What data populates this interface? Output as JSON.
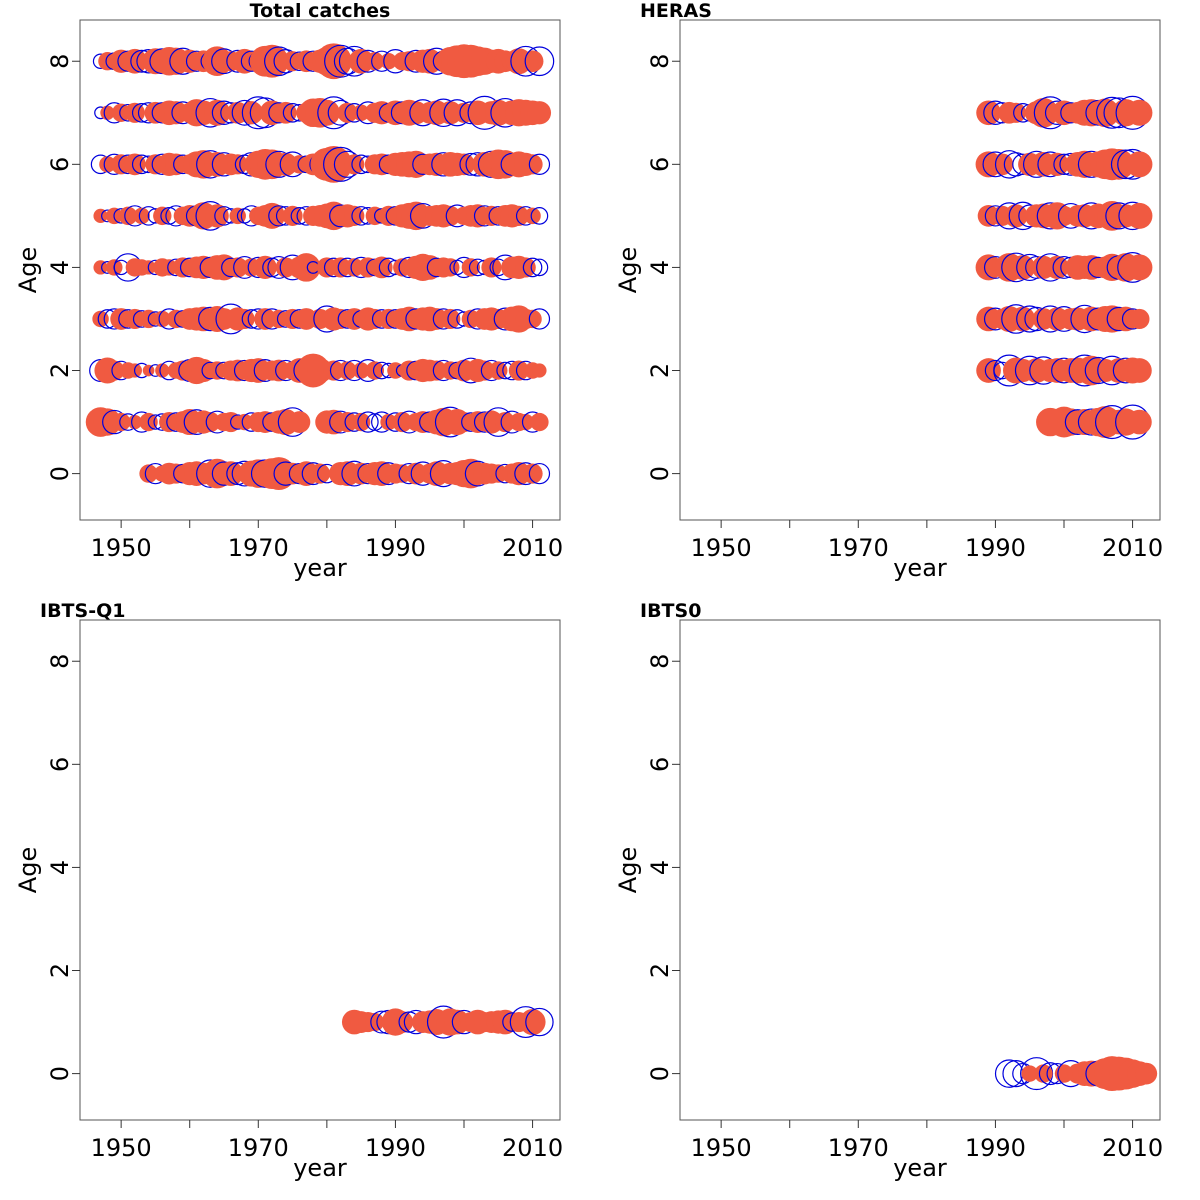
{
  "chart_data": [
    {
      "type": "scatter",
      "subtype": "bubble",
      "title": "Total catches",
      "xlabel": "year",
      "ylabel": "Age",
      "xlim": [
        1944,
        2014
      ],
      "ylim": [
        -0.9,
        8.8
      ],
      "xticks": [
        1950,
        1960,
        1970,
        1980,
        1990,
        2000,
        2010
      ],
      "xtick_labels": [
        "1950",
        "",
        "1970",
        "",
        "1990",
        "",
        "2010"
      ],
      "yticks": [
        0,
        2,
        4,
        6,
        8
      ],
      "ytick_labels": [
        "0",
        "2",
        "4",
        "6",
        "8"
      ],
      "encoding": "bubble size = residual magnitude; filled red = negative, open blue = positive (alternating)",
      "year_start": 1947,
      "year_end": 2011,
      "ages": [
        {
          "age": 8,
          "first_year": 1947,
          "residuals": [
            0.3,
            -0.5,
            0.4,
            -0.8,
            0.6,
            -0.9,
            0.7,
            0.8,
            -1.0,
            0.9,
            -1.2,
            -1.1,
            1.0,
            -0.8,
            0.6,
            -0.7,
            0.5,
            -1.3,
            0.9,
            -0.6,
            0.7,
            -0.9,
            0.6,
            0.5,
            -1.4,
            -1.6,
            1.2,
            0.8,
            -0.6,
            0.5,
            -0.7,
            0.6,
            -0.8,
            -1.2,
            -1.9,
            1.5,
            1.0,
            1.3,
            -0.9,
            0.7,
            -0.5,
            0.6,
            -0.4,
            0.8,
            -0.5,
            -0.6,
            0.7,
            -0.8,
            -0.9,
            1.0,
            0.6,
            -1.2,
            -1.5,
            -1.7,
            -1.6,
            -1.3,
            -1.1,
            -0.8,
            -0.9,
            -0.7,
            -0.6,
            -1.0,
            1.3,
            -0.7,
            1.2
          ]
        },
        {
          "age": 7,
          "first_year": 1947,
          "residuals": [
            0.2,
            -0.3,
            0.6,
            -0.5,
            0.4,
            -0.6,
            0.5,
            0.6,
            -0.7,
            0.6,
            -0.9,
            -0.8,
            0.7,
            -0.6,
            -1.1,
            -0.9,
            1.2,
            -1.0,
            0.8,
            0.6,
            -0.7,
            0.9,
            -0.8,
            1.5,
            1.3,
            -0.9,
            0.6,
            -0.7,
            0.5,
            0.4,
            -0.6,
            -1.2,
            -1.3,
            -1.0,
            1.5,
            0.9,
            -0.6,
            0.5,
            -0.4,
            0.7,
            -0.6,
            -0.8,
            0.5,
            -0.9,
            0.7,
            -1.0,
            -0.8,
            1.0,
            -0.7,
            -0.9,
            1.1,
            -0.8,
            1.0,
            -0.6,
            0.7,
            -0.9,
            1.6,
            -0.8,
            -1.0,
            1.2,
            -0.9,
            -1.1,
            -1.0,
            -0.9,
            -0.8
          ]
        },
        {
          "age": 6,
          "first_year": 1947,
          "residuals": [
            0.5,
            -0.4,
            0.6,
            -0.6,
            0.5,
            -0.7,
            0.5,
            0.4,
            -0.6,
            0.6,
            -0.8,
            -0.7,
            0.5,
            -0.6,
            -1.0,
            -1.2,
            1.1,
            -0.9,
            0.8,
            -0.7,
            -0.6,
            0.5,
            0.8,
            -1.1,
            -1.4,
            -1.3,
            1.0,
            -0.8,
            0.9,
            -0.5,
            0.4,
            -0.7,
            0.6,
            -1.6,
            -2.0,
            1.7,
            1.0,
            -0.6,
            0.5,
            0.4,
            -0.6,
            -0.7,
            0.5,
            -0.8,
            -0.9,
            -1.0,
            -1.1,
            0.6,
            -0.7,
            -0.8,
            0.8,
            -0.9,
            -0.8,
            -0.7,
            0.7,
            0.8,
            -0.9,
            1.0,
            -1.3,
            -1.2,
            0.7,
            -1.0,
            -0.8,
            -0.6,
            0.6
          ]
        },
        {
          "age": 5,
          "first_year": 1947,
          "residuals": [
            -0.3,
            0.2,
            -0.4,
            0.3,
            -0.5,
            0.6,
            -0.4,
            0.5,
            0.3,
            -0.5,
            0.4,
            0.6,
            -0.5,
            -0.7,
            0.6,
            -1.1,
            1.2,
            -0.8,
            0.5,
            0.3,
            -0.4,
            0.3,
            0.6,
            -0.5,
            -0.7,
            -1.0,
            0.6,
            0.5,
            -0.6,
            0.4,
            0.5,
            -0.6,
            -0.7,
            -0.9,
            -1.2,
            0.7,
            -0.8,
            -0.6,
            0.5,
            0.4,
            -0.5,
            0.3,
            -0.6,
            0.5,
            -0.8,
            -1.0,
            -1.2,
            0.9,
            -0.6,
            -0.7,
            -0.8,
            -0.6,
            0.7,
            -0.5,
            -0.7,
            -0.8,
            0.6,
            -0.6,
            0.5,
            -0.7,
            -0.8,
            -0.6,
            0.5,
            -0.4,
            0.4
          ]
        },
        {
          "age": 4,
          "first_year": 1947,
          "residuals": [
            -0.3,
            0.2,
            -0.4,
            0.3,
            1.1,
            -0.5,
            -0.4,
            -0.3,
            0.3,
            -0.5,
            -0.4,
            0.4,
            -0.6,
            0.5,
            -0.7,
            -0.8,
            0.6,
            -0.9,
            -1.0,
            0.5,
            -0.6,
            0.7,
            -0.5,
            0.6,
            -0.8,
            0.5,
            0.7,
            -0.6,
            0.9,
            -0.7,
            -1.2,
            0.2,
            0.0,
            -0.6,
            0.5,
            -0.6,
            0.5,
            -0.5,
            0.6,
            -0.6,
            0.4,
            -0.7,
            0.5,
            0.3,
            -0.5,
            0.6,
            -0.8,
            -1.1,
            -0.9,
            0.5,
            -0.6,
            -0.5,
            0.3,
            0.6,
            -0.5,
            0.4,
            0.3,
            -0.6,
            0.4,
            0.9,
            -0.7,
            -0.8,
            -0.6,
            0.5,
            0.4
          ]
        },
        {
          "age": 3,
          "first_year": 1947,
          "residuals": [
            -0.4,
            0.5,
            0.6,
            -0.7,
            0.5,
            -0.6,
            0.4,
            -0.5,
            0.3,
            -0.4,
            0.6,
            -0.5,
            0.4,
            -0.7,
            -0.8,
            -0.9,
            0.8,
            -1.0,
            -0.7,
            1.3,
            -0.8,
            -0.6,
            0.5,
            0.6,
            -0.7,
            0.6,
            -0.5,
            0.4,
            -0.6,
            0.5,
            -0.7,
            0.0,
            -0.6,
            1.0,
            -0.8,
            -0.6,
            0.5,
            -0.7,
            0.4,
            -0.8,
            -0.6,
            0.5,
            -0.6,
            0.5,
            -0.7,
            -0.9,
            0.6,
            -0.8,
            -0.9,
            -0.7,
            0.6,
            -0.6,
            0.5,
            0.3,
            -0.5,
            0.6,
            -0.7,
            -0.8,
            -0.6,
            0.7,
            -0.9,
            -1.1,
            -0.6,
            -0.5,
            0.6
          ]
        },
        {
          "age": 2,
          "first_year": 1947,
          "residuals": [
            0.7,
            -1.0,
            -0.6,
            0.5,
            -0.4,
            -0.3,
            0.3,
            -0.2,
            0.2,
            -0.3,
            0.5,
            -0.4,
            -0.6,
            0.7,
            -1.1,
            -0.8,
            0.4,
            -0.5,
            0.4,
            -0.6,
            -0.7,
            0.6,
            -0.8,
            -0.9,
            0.7,
            -0.6,
            -0.7,
            0.6,
            -0.5,
            -0.9,
            0.9,
            -1.7,
            -0.9,
            -0.5,
            -0.6,
            0.6,
            -0.5,
            0.6,
            -0.4,
            0.7,
            -0.5,
            0.4,
            0.3,
            -0.4,
            0.2,
            -0.6,
            0.5,
            -0.8,
            -0.7,
            -0.6,
            0.6,
            -0.5,
            0.4,
            -0.7,
            0.9,
            -0.8,
            -0.6,
            0.6,
            -0.5,
            0.4,
            0.5,
            -0.6,
            0.5,
            -0.4,
            -0.3
          ]
        },
        {
          "age": 1,
          "first_year": 1947,
          "residuals": [
            -1.3,
            -1.1,
            0.8,
            -0.5,
            0.4,
            -0.3,
            0.6,
            -0.5,
            0.3,
            0.4,
            -0.6,
            0.5,
            -0.7,
            -1.0,
            0.9,
            -0.8,
            -0.6,
            0.7,
            -0.5,
            -0.6,
            0.3,
            -0.4,
            0.5,
            -0.6,
            -0.7,
            0.5,
            -0.8,
            -1.0,
            1.2,
            -0.7,
            0.0,
            0.0,
            0.0,
            -0.8,
            -0.9,
            0.7,
            -0.6,
            0.5,
            -0.5,
            0.6,
            0.4,
            0.6,
            -0.4,
            0.5,
            -0.6,
            0.7,
            -0.5,
            -0.7,
            0.6,
            -0.9,
            -1.2,
            1.3,
            -1.0,
            -0.6,
            0.5,
            -0.7,
            0.6,
            -0.8,
            1.2,
            -0.6,
            0.7,
            -0.5,
            -0.4,
            0.6,
            -0.5
          ]
        },
        {
          "age": 0,
          "first_year": 1954,
          "residuals": [
            -0.5,
            0.6,
            -0.4,
            -0.7,
            -0.6,
            0.5,
            -0.8,
            -0.9,
            -0.7,
            1.1,
            -1.3,
            0.8,
            -0.9,
            0.7,
            0.9,
            -1.0,
            -1.2,
            1.1,
            -1.4,
            -1.6,
            0.8,
            -0.7,
            0.6,
            -0.9,
            0.7,
            -0.6,
            0.5,
            0.0,
            -0.8,
            -0.9,
            0.9,
            -0.7,
            0.6,
            -0.8,
            -0.9,
            0.7,
            -0.6,
            -0.5,
            0.6,
            -0.7,
            0.8,
            -0.6,
            -0.9,
            1.0,
            -0.7,
            -0.8,
            -1.1,
            -1.3,
            0.9,
            -0.7,
            -0.6,
            -0.5,
            0.5,
            -0.6,
            -0.8,
            0.7,
            -0.6,
            0.6
          ]
        }
      ]
    },
    {
      "type": "scatter",
      "subtype": "bubble",
      "title": "HERAS",
      "xlabel": "year",
      "ylabel": "Age",
      "xlim": [
        1944,
        2014
      ],
      "ylim": [
        -0.9,
        8.8
      ],
      "xticks": [
        1950,
        1960,
        1970,
        1980,
        1990,
        2000,
        2010
      ],
      "xtick_labels": [
        "1950",
        "",
        "1970",
        "",
        "1990",
        "",
        "2010"
      ],
      "yticks": [
        0,
        2,
        4,
        6,
        8
      ],
      "ytick_labels": [
        "0",
        "2",
        "4",
        "6",
        "8"
      ],
      "ages": [
        {
          "age": 7,
          "first_year": 1989,
          "residuals": [
            -0.9,
            0.8,
            0.6,
            -0.7,
            -0.6,
            0.5,
            0.4,
            -0.8,
            -1.3,
            1.5,
            0.8,
            -0.9,
            0.6,
            -0.7,
            -1.0,
            -1.1,
            0.9,
            -1.2,
            1.4,
            1.3,
            -1.1,
            1.6,
            -1.0
          ]
        },
        {
          "age": 6,
          "first_year": 1989,
          "residuals": [
            -1.0,
            0.9,
            -0.7,
            1.1,
            0.8,
            0.6,
            -0.8,
            1.0,
            -0.9,
            0.9,
            -0.8,
            0.6,
            0.7,
            -0.9,
            -1.1,
            1.0,
            -1.0,
            -1.3,
            -1.5,
            -1.4,
            1.2,
            1.3,
            -1.0
          ]
        },
        {
          "age": 5,
          "first_year": 1989,
          "residuals": [
            -0.7,
            0.6,
            -0.6,
            1.0,
            -0.8,
            1.1,
            0.7,
            -0.8,
            -0.9,
            1.0,
            -1.1,
            -0.6,
            0.9,
            -0.7,
            -0.8,
            1.0,
            -0.9,
            -0.7,
            -1.3,
            1.0,
            -0.8,
            1.1,
            -1.0
          ]
        },
        {
          "age": 4,
          "first_year": 1989,
          "residuals": [
            -1.0,
            0.7,
            -0.6,
            -1.2,
            1.2,
            -0.9,
            1.0,
            0.7,
            -0.8,
            1.1,
            -0.8,
            0.7,
            0.6,
            -0.9,
            -0.8,
            -0.9,
            0.6,
            -0.7,
            -1.1,
            0.8,
            -1.2,
            1.3,
            -1.0
          ]
        },
        {
          "age": 3,
          "first_year": 1989,
          "residuals": [
            -0.9,
            0.7,
            -0.6,
            -1.0,
            1.2,
            -0.9,
            1.0,
            0.8,
            -0.7,
            1.0,
            -0.8,
            0.9,
            -0.7,
            -0.8,
            1.1,
            -0.9,
            0.7,
            -1.0,
            -1.1,
            0.8,
            -0.9,
            0.6,
            -0.6
          ]
        },
        {
          "age": 2,
          "first_year": 1989,
          "residuals": [
            -0.9,
            0.6,
            0.4,
            1.4,
            -1.0,
            -0.8,
            1.2,
            -0.9,
            1.1,
            -0.8,
            -0.9,
            0.9,
            -0.9,
            -1.0,
            1.4,
            -1.3,
            1.0,
            -0.8,
            1.2,
            -0.9,
            0.9,
            -1.0,
            -0.9
          ]
        },
        {
          "age": 1,
          "first_year": 1998,
          "residuals": [
            -1.2,
            0.3,
            -1.4,
            -1.1,
            0.9,
            -1.0,
            1.0,
            -1.2,
            -1.5,
            1.6,
            -0.9,
            -1.1,
            1.7,
            -0.9
          ]
        }
      ]
    },
    {
      "type": "scatter",
      "subtype": "bubble",
      "title": "IBTS-Q1",
      "xlabel": "year",
      "ylabel": "Age",
      "xlim": [
        1944,
        2014
      ],
      "ylim": [
        -0.9,
        8.8
      ],
      "xticks": [
        1950,
        1960,
        1970,
        1980,
        1990,
        2000,
        2010
      ],
      "xtick_labels": [
        "1950",
        "",
        "1970",
        "",
        "1990",
        "",
        "2010"
      ],
      "yticks": [
        0,
        2,
        4,
        6,
        8
      ],
      "ytick_labels": [
        "0",
        "2",
        "4",
        "6",
        "8"
      ],
      "ages": [
        {
          "age": 1,
          "first_year": 1984,
          "residuals": [
            -0.9,
            -0.7,
            -0.6,
            -0.5,
            0.7,
            0.8,
            -1.1,
            -0.7,
            0.6,
            0.8,
            -0.7,
            -0.8,
            -1.0,
            1.5,
            -1.1,
            -0.9,
            0.8,
            -0.6,
            -0.9,
            -0.6,
            -0.7,
            -0.8,
            -0.9,
            0.5,
            -0.6,
            1.4,
            -1.0,
            1.1
          ]
        }
      ]
    },
    {
      "type": "scatter",
      "subtype": "bubble",
      "title": "IBTS0",
      "xlabel": "year",
      "ylabel": "Age",
      "xlim": [
        1944,
        2014
      ],
      "ylim": [
        -0.9,
        8.8
      ],
      "xticks": [
        1950,
        1960,
        1970,
        1980,
        1990,
        2000,
        2010
      ],
      "xtick_labels": [
        "1950",
        "",
        "1970",
        "",
        "1990",
        "",
        "2010"
      ],
      "yticks": [
        0,
        2,
        4,
        6,
        8
      ],
      "ytick_labels": [
        "0",
        "2",
        "4",
        "6",
        "8"
      ],
      "ages": [
        {
          "age": 0,
          "first_year": 1992,
          "residuals": [
            1.1,
            1.0,
            0.6,
            -0.4,
            1.5,
            -0.5,
            0.7,
            0.6,
            -0.5,
            1.0,
            -0.6,
            -0.9,
            -1.0,
            0.9,
            -1.4,
            -1.8,
            -1.7,
            -1.5,
            -1.2,
            -0.9,
            -0.7
          ]
        }
      ]
    }
  ],
  "colors": {
    "negative_fill": "#f05a41",
    "positive_stroke": "#0000dd",
    "frame": "#555555",
    "text": "#000000"
  }
}
